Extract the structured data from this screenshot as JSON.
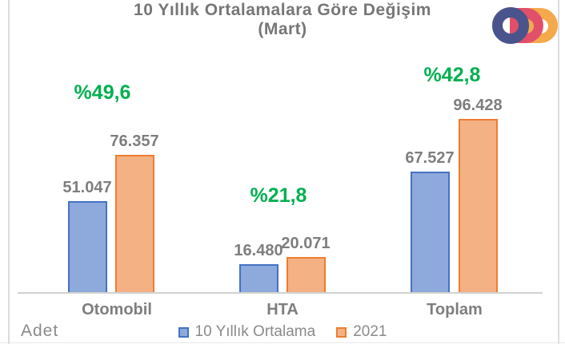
{
  "title": {
    "line1": "10 Yıllık Ortalamalara  Göre Değişim",
    "line2": "(Mart)"
  },
  "logo": {
    "letters": "ODD",
    "colors": {
      "o": "#49548C",
      "d1": "#E1506A",
      "d2": "#F4A94C"
    }
  },
  "chart_data": {
    "type": "bar",
    "title": "10 Yıllık Ortalamalara Göre Değişim (Mart)",
    "unit_label": "Adet",
    "categories": [
      "Otomobil",
      "HTA",
      "Toplam"
    ],
    "series": [
      {
        "name": "10 Yıllık Ortalama",
        "values": [
          51047,
          16480,
          67527
        ],
        "value_labels": [
          "51.047",
          "16.480",
          "67.527"
        ],
        "fill": "#8EA9DB",
        "border": "#4472C4"
      },
      {
        "name": "2021",
        "values": [
          76357,
          20071,
          96428
        ],
        "value_labels": [
          "76.357",
          "20.071",
          "96.428"
        ],
        "fill": "#F4B183",
        "border": "#ED7D31"
      }
    ],
    "percent_changes": [
      49.6,
      21.8,
      42.8
    ],
    "change_labels": [
      "%49,6",
      "%21,8",
      "%42,8"
    ],
    "change_color": "#00B050",
    "legend_position": "bottom",
    "gridlines": false,
    "value_axis_visible": false
  },
  "footer": {
    "unit_label": "Adet"
  }
}
